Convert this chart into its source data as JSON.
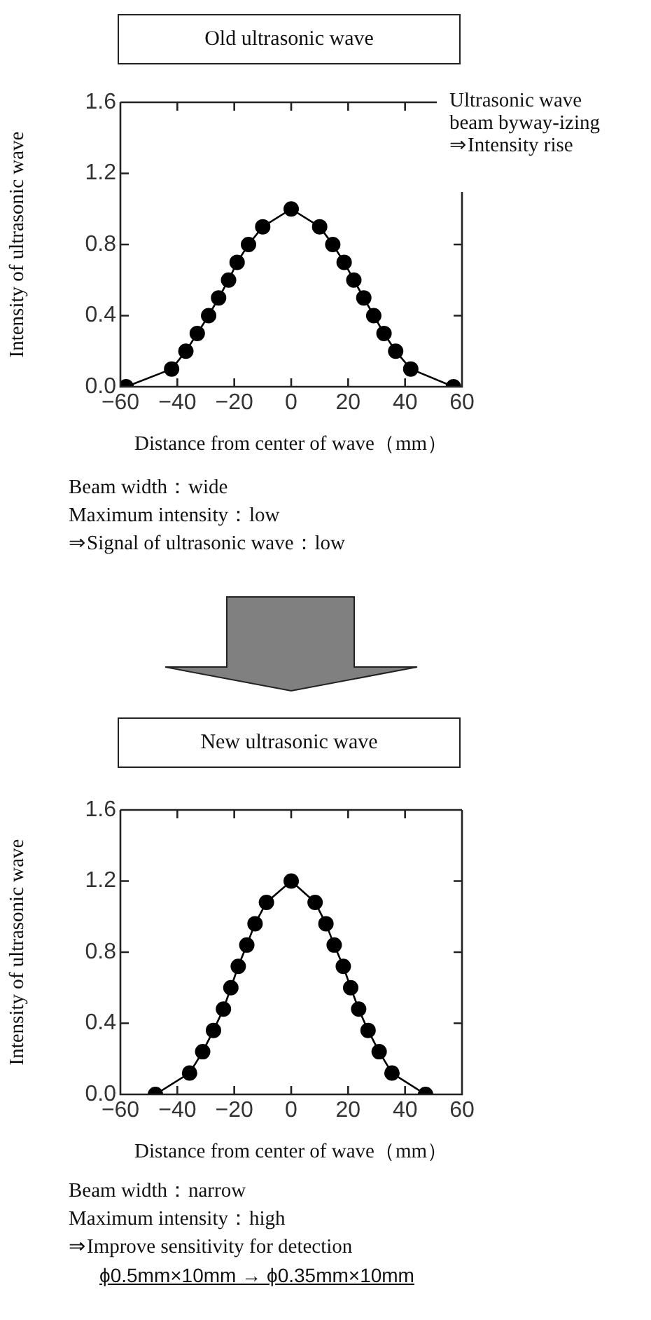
{
  "chart_data": [
    {
      "type": "line",
      "title": "Old ultrasonic wave",
      "xlabel": "Distance from center of wave（mm）",
      "ylabel": "Intensity of ultrasonic wave",
      "x": [
        -58,
        -42,
        -37,
        -33,
        -29,
        -25.5,
        -22,
        -19,
        -15,
        -10,
        0,
        10,
        14.6,
        18.6,
        22,
        25.5,
        29,
        32.6,
        36.7,
        42,
        57
      ],
      "series": [
        {
          "color": "#000000",
          "values": [
            0,
            0.1,
            0.2,
            0.3,
            0.4,
            0.5,
            0.6,
            0.7,
            0.8,
            0.9,
            1.0,
            0.9,
            0.8,
            0.7,
            0.6,
            0.5,
            0.4,
            0.3,
            0.2,
            0.1,
            0
          ]
        }
      ],
      "xlim": [
        -60,
        60
      ],
      "xticks": [
        {
          "value": -60,
          "label": "−60"
        },
        {
          "value": -40,
          "label": "−40"
        },
        {
          "value": -20,
          "label": "−20"
        },
        0,
        20,
        40,
        60
      ],
      "ylim": [
        0,
        1.6
      ],
      "yticks": [
        {
          "value": 0,
          "label": "0.0"
        },
        0.4,
        0.8,
        1.2,
        1.6
      ],
      "marker": "circle",
      "line_style": "solid",
      "grid": false,
      "legend": false,
      "annotations": [
        "Ultrasonic wave\nbeam byway-izing\n⇒Intensity rise",
        "Beam width：wide",
        "Maximum intensity：low",
        "⇒Signal of ultrasonic wave：low"
      ]
    },
    {
      "type": "line",
      "title": "New ultrasonic wave",
      "xlabel": "Distance from center of wave（mm）",
      "ylabel": "Intensity of ultrasonic wave",
      "x": [
        -47.7,
        -35.7,
        -31.1,
        -27.3,
        -23.8,
        -21.2,
        -18.6,
        -15.6,
        -12.7,
        -8.7,
        0,
        8.4,
        12.2,
        15.1,
        18.3,
        20.9,
        23.7,
        27,
        30.9,
        35.4,
        47.2
      ],
      "series": [
        {
          "color": "#000000",
          "values": [
            0,
            0.12,
            0.24,
            0.36,
            0.48,
            0.6,
            0.72,
            0.84,
            0.96,
            1.08,
            1.2,
            1.08,
            0.96,
            0.84,
            0.72,
            0.6,
            0.48,
            0.36,
            0.24,
            0.12,
            0
          ]
        }
      ],
      "xlim": [
        -60,
        60
      ],
      "xticks": [
        {
          "value": -60,
          "label": "−60"
        },
        {
          "value": -40,
          "label": "−40"
        },
        {
          "value": -20,
          "label": "−20"
        },
        0,
        20,
        40,
        60
      ],
      "ylim": [
        0,
        1.6
      ],
      "yticks": [
        {
          "value": 0,
          "label": "0.0"
        },
        0.4,
        0.8,
        1.2,
        1.6
      ],
      "marker": "circle",
      "line_style": "solid",
      "grid": false,
      "legend": false,
      "annotations": [
        "Beam width：narrow",
        "Maximum intensity：high",
        "⇒Improve sensitivity for detection",
        "ϕ0.5mm×10mm → ϕ0.35mm×10mm"
      ]
    }
  ]
}
